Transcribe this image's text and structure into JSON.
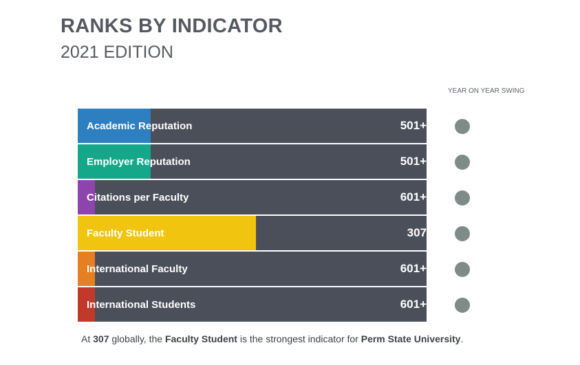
{
  "header": {
    "title": "RANKS BY INDICATOR",
    "subtitle": "2021 EDITION",
    "swing_label": "YEAR ON YEAR SWING"
  },
  "chart_data": {
    "type": "bar",
    "orientation": "horizontal",
    "title": "RANKS BY INDICATOR",
    "subtitle": "2021 EDITION",
    "categories": [
      "Academic Reputation",
      "Employer Reputation",
      "Citations per Faculty",
      "Faculty Student",
      "International Faculty",
      "International Students"
    ],
    "rank_labels": [
      "501+",
      "501+",
      "601+",
      "307",
      "601+",
      "601+"
    ],
    "score_fractions": [
      0.21,
      0.21,
      0.05,
      0.51,
      0.05,
      0.05
    ],
    "colors": [
      "#2e7fc0",
      "#15a78a",
      "#8e44ad",
      "#f1c40f",
      "#e67e22",
      "#c0392b"
    ],
    "background_color": "#4b4f5a",
    "swing_color": "#7f8b89"
  },
  "footer": {
    "prefix": "At ",
    "rank": "307",
    "mid1": " globally, the ",
    "indicator": "Faculty Student",
    "mid2": "  is the strongest indicator for ",
    "university": "Perm State University",
    "suffix": "."
  }
}
